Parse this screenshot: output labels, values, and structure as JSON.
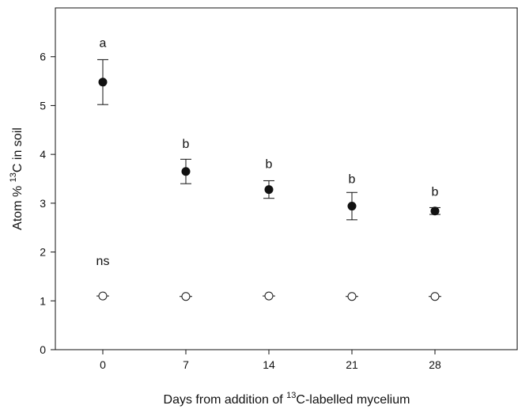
{
  "chart_data": {
    "type": "scatter",
    "x_axis": {
      "label_prefix": "Days from addition of ",
      "label_sup": "13",
      "label_suffix": "C-labelled mycelium",
      "ticks": [
        0,
        7,
        14,
        21,
        28
      ],
      "xlim": [
        -4,
        35
      ]
    },
    "y_axis": {
      "label_prefix": "Atom % ",
      "label_sup": "13",
      "label_suffix": "C in soil",
      "ticks": [
        0,
        1,
        2,
        3,
        4,
        5,
        6
      ],
      "ylim": [
        0,
        7
      ]
    },
    "series": [
      {
        "marker": "filled-circle",
        "color": "#111111",
        "x": [
          0,
          7,
          14,
          21,
          28
        ],
        "y": [
          5.48,
          3.65,
          3.28,
          2.94,
          2.84
        ],
        "error": [
          0.46,
          0.25,
          0.18,
          0.28,
          0.07
        ]
      },
      {
        "marker": "open-circle",
        "color": "#111111",
        "x": [
          0,
          7,
          14,
          21,
          28
        ],
        "y": [
          1.1,
          1.09,
          1.1,
          1.09,
          1.09
        ],
        "error": [
          0.02,
          0.02,
          0.02,
          0.02,
          0.02
        ]
      }
    ],
    "annotations": [
      {
        "text": "a",
        "x": 0,
        "y": 6.2
      },
      {
        "text": "b",
        "x": 7,
        "y": 4.13
      },
      {
        "text": "b",
        "x": 14,
        "y": 3.72
      },
      {
        "text": "b",
        "x": 21,
        "y": 3.41
      },
      {
        "text": "b",
        "x": 28,
        "y": 3.15
      },
      {
        "text": "ns",
        "x": 0,
        "y": 1.73
      }
    ],
    "grid": false
  }
}
